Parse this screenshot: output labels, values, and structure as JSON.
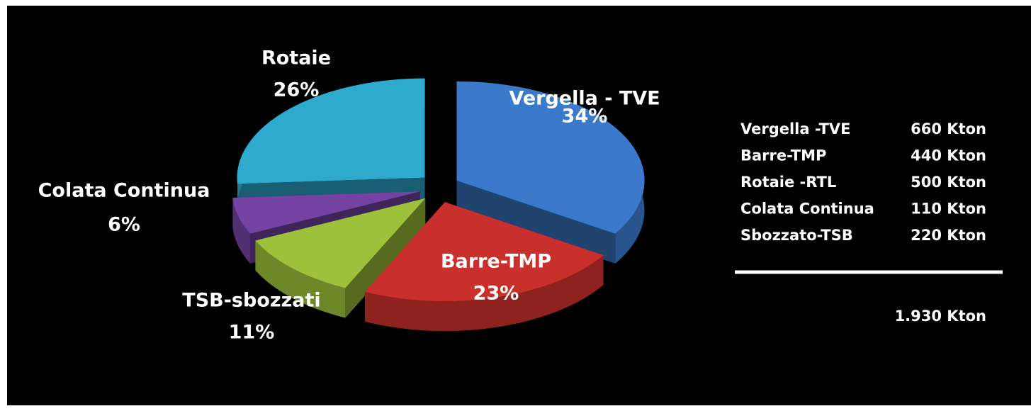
{
  "chart_data": {
    "type": "pie",
    "categories": [
      "Vergella - TVE",
      "Barre-TMP",
      "TSB-sbozzati",
      "Colata Continua",
      "Rotaie"
    ],
    "values": [
      34,
      23,
      11,
      6,
      26
    ],
    "value_labels": [
      "34%",
      "23%",
      "11%",
      "6%",
      "26%"
    ],
    "colors": [
      "#3b7acb",
      "#c9302c",
      "#9dc13b",
      "#7443a3",
      "#2eaacf"
    ]
  },
  "table": {
    "rows": [
      [
        "Vergella -TVE",
        "660 Kton"
      ],
      [
        "Barre-TMP",
        "440 Kton"
      ],
      [
        "Rotaie -RTL",
        "500 Kton"
      ],
      [
        "Colata Continua",
        "110 Kton"
      ],
      [
        "Sbozzato-TSB",
        "220 Kton"
      ]
    ],
    "total": "1.930 Kton"
  }
}
